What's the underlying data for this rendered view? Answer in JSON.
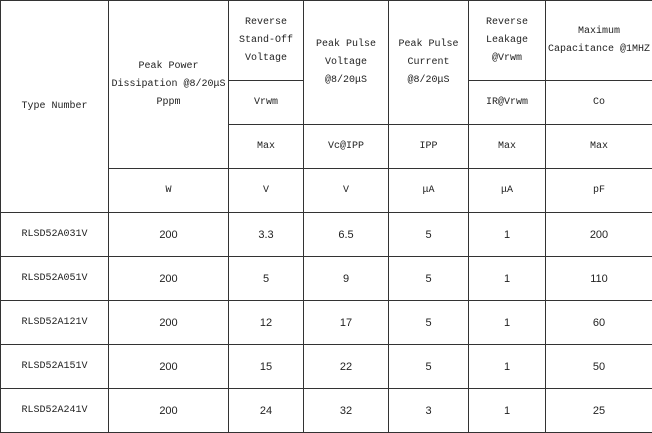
{
  "header": {
    "type_number": "Type Number",
    "columns": [
      {
        "title": "Peak Power Dissipation @8/20μS Pppm",
        "unit": "W"
      },
      {
        "title": "Reverse Stand-Off Voltage",
        "symbol": "Vrwm",
        "limit": "Max",
        "unit": "V"
      },
      {
        "title": "Peak Pulse Voltage @8/20μS",
        "symbol": "Vc@IPP",
        "unit": "V"
      },
      {
        "title": "Peak Pulse Current @8/20μS",
        "symbol": "IPP",
        "unit": "μA"
      },
      {
        "title": "Reverse Leakage @Vrwm",
        "symbol": "IR@Vrwm",
        "limit": "Max",
        "unit": "μA"
      },
      {
        "title": "Maximum Capacitance @1MHZ",
        "symbol": "Co",
        "limit": "Max",
        "unit": "pF"
      }
    ]
  },
  "rows": [
    [
      "RLSD52A031V",
      "200",
      "3.3",
      "6.5",
      "5",
      "1",
      "200"
    ],
    [
      "RLSD52A051V",
      "200",
      "5",
      "9",
      "5",
      "1",
      "110"
    ],
    [
      "RLSD52A121V",
      "200",
      "12",
      "17",
      "5",
      "1",
      "60"
    ],
    [
      "RLSD52A151V",
      "200",
      "15",
      "22",
      "5",
      "1",
      "50"
    ],
    [
      "RLSD52A241V",
      "200",
      "24",
      "32",
      "3",
      "1",
      "25"
    ]
  ]
}
